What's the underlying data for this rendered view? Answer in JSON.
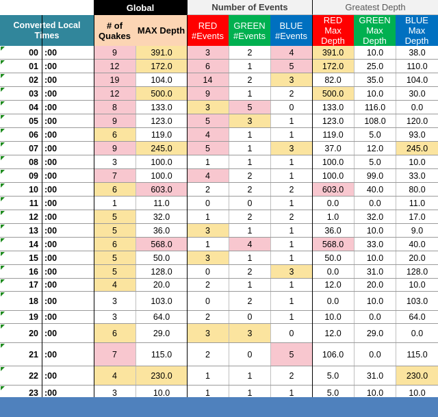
{
  "group_headers": {
    "global": "Global",
    "events": "Number of Events",
    "depth": "Greatest Depth"
  },
  "column_headers": {
    "local_times": "Converted Local Times",
    "quakes": "# of Quakes",
    "max_depth": "MAX Depth",
    "red_events": "RED #Events",
    "green_events": "GREEN #Events",
    "blue_events": "BLUE #Events",
    "red_max_depth": "RED Max Depth",
    "green_max_depth": "GREEN Max Depth",
    "blue_max_depth": "BLUE Max Depth"
  },
  "colors": {
    "local_times_header": "#31869b",
    "global_header": "#000000",
    "quakes_header": "#fcd5b4",
    "red": "#ff0000",
    "green": "#00b050",
    "blue": "#0070c0",
    "highlight_pink": "#f8c7cf",
    "highlight_yellow": "#fbe49f",
    "footer": "#4f81bd"
  },
  "rows": [
    {
      "hour": "00",
      "min": ":00",
      "quakes": "9",
      "max_depth": "391.0",
      "red": "3",
      "green": "2",
      "blue": "4",
      "red_depth": "391.0",
      "green_depth": "10.0",
      "blue_depth": "38.0"
    },
    {
      "hour": "01",
      "min": ":00",
      "quakes": "12",
      "max_depth": "172.0",
      "red": "6",
      "green": "1",
      "blue": "5",
      "red_depth": "172.0",
      "green_depth": "25.0",
      "blue_depth": "110.0"
    },
    {
      "hour": "02",
      "min": ":00",
      "quakes": "19",
      "max_depth": "104.0",
      "red": "14",
      "green": "2",
      "blue": "3",
      "red_depth": "82.0",
      "green_depth": "35.0",
      "blue_depth": "104.0"
    },
    {
      "hour": "03",
      "min": ":00",
      "quakes": "12",
      "max_depth": "500.0",
      "red": "9",
      "green": "1",
      "blue": "2",
      "red_depth": "500.0",
      "green_depth": "10.0",
      "blue_depth": "30.0"
    },
    {
      "hour": "04",
      "min": ":00",
      "quakes": "8",
      "max_depth": "133.0",
      "red": "3",
      "green": "5",
      "blue": "0",
      "red_depth": "133.0",
      "green_depth": "116.0",
      "blue_depth": "0.0"
    },
    {
      "hour": "05",
      "min": ":00",
      "quakes": "9",
      "max_depth": "123.0",
      "red": "5",
      "green": "3",
      "blue": "1",
      "red_depth": "123.0",
      "green_depth": "108.0",
      "blue_depth": "120.0"
    },
    {
      "hour": "06",
      "min": ":00",
      "quakes": "6",
      "max_depth": "119.0",
      "red": "4",
      "green": "1",
      "blue": "1",
      "red_depth": "119.0",
      "green_depth": "5.0",
      "blue_depth": "93.0"
    },
    {
      "hour": "07",
      "min": ":00",
      "quakes": "9",
      "max_depth": "245.0",
      "red": "5",
      "green": "1",
      "blue": "3",
      "red_depth": "37.0",
      "green_depth": "12.0",
      "blue_depth": "245.0"
    },
    {
      "hour": "08",
      "min": ":00",
      "quakes": "3",
      "max_depth": "100.0",
      "red": "1",
      "green": "1",
      "blue": "1",
      "red_depth": "100.0",
      "green_depth": "5.0",
      "blue_depth": "10.0"
    },
    {
      "hour": "09",
      "min": ":00",
      "quakes": "7",
      "max_depth": "100.0",
      "red": "4",
      "green": "2",
      "blue": "1",
      "red_depth": "100.0",
      "green_depth": "99.0",
      "blue_depth": "33.0"
    },
    {
      "hour": "10",
      "min": ":00",
      "quakes": "6",
      "max_depth": "603.0",
      "red": "2",
      "green": "2",
      "blue": "2",
      "red_depth": "603.0",
      "green_depth": "40.0",
      "blue_depth": "80.0"
    },
    {
      "hour": "11",
      "min": ":00",
      "quakes": "1",
      "max_depth": "11.0",
      "red": "0",
      "green": "0",
      "blue": "1",
      "red_depth": "0.0",
      "green_depth": "0.0",
      "blue_depth": "11.0"
    },
    {
      "hour": "12",
      "min": ":00",
      "quakes": "5",
      "max_depth": "32.0",
      "red": "1",
      "green": "2",
      "blue": "2",
      "red_depth": "1.0",
      "green_depth": "32.0",
      "blue_depth": "17.0"
    },
    {
      "hour": "13",
      "min": ":00",
      "quakes": "5",
      "max_depth": "36.0",
      "red": "3",
      "green": "1",
      "blue": "1",
      "red_depth": "36.0",
      "green_depth": "10.0",
      "blue_depth": "9.0"
    },
    {
      "hour": "14",
      "min": ":00",
      "quakes": "6",
      "max_depth": "568.0",
      "red": "1",
      "green": "4",
      "blue": "1",
      "red_depth": "568.0",
      "green_depth": "33.0",
      "blue_depth": "40.0"
    },
    {
      "hour": "15",
      "min": ":00",
      "quakes": "5",
      "max_depth": "50.0",
      "red": "3",
      "green": "1",
      "blue": "1",
      "red_depth": "50.0",
      "green_depth": "10.0",
      "blue_depth": "20.0"
    },
    {
      "hour": "16",
      "min": ":00",
      "quakes": "5",
      "max_depth": "128.0",
      "red": "0",
      "green": "2",
      "blue": "3",
      "red_depth": "0.0",
      "green_depth": "31.0",
      "blue_depth": "128.0"
    },
    {
      "hour": "17",
      "min": ":00",
      "quakes": "4",
      "max_depth": "20.0",
      "red": "2",
      "green": "1",
      "blue": "1",
      "red_depth": "12.0",
      "green_depth": "20.0",
      "blue_depth": "10.0"
    },
    {
      "hour": "18",
      "min": ":00",
      "quakes": "3",
      "max_depth": "103.0",
      "red": "0",
      "green": "2",
      "blue": "1",
      "red_depth": "0.0",
      "green_depth": "10.0",
      "blue_depth": "103.0"
    },
    {
      "hour": "19",
      "min": ":00",
      "quakes": "3",
      "max_depth": "64.0",
      "red": "2",
      "green": "0",
      "blue": "1",
      "red_depth": "10.0",
      "green_depth": "0.0",
      "blue_depth": "64.0"
    },
    {
      "hour": "20",
      "min": ":00",
      "quakes": "6",
      "max_depth": "29.0",
      "red": "3",
      "green": "3",
      "blue": "0",
      "red_depth": "12.0",
      "green_depth": "29.0",
      "blue_depth": "0.0"
    },
    {
      "hour": "21",
      "min": ":00",
      "quakes": "7",
      "max_depth": "115.0",
      "red": "2",
      "green": "0",
      "blue": "5",
      "red_depth": "106.0",
      "green_depth": "0.0",
      "blue_depth": "115.0"
    },
    {
      "hour": "22",
      "min": ":00",
      "quakes": "4",
      "max_depth": "230.0",
      "red": "1",
      "green": "1",
      "blue": "2",
      "red_depth": "5.0",
      "green_depth": "31.0",
      "blue_depth": "230.0"
    },
    {
      "hour": "23",
      "min": ":00",
      "quakes": "3",
      "max_depth": "10.0",
      "red": "1",
      "green": "1",
      "blue": "1",
      "red_depth": "5.0",
      "green_depth": "10.0",
      "blue_depth": "10.0"
    }
  ],
  "highlights": [
    {
      "quakes": "pink",
      "max_depth": "yel",
      "red": "pink",
      "blue": "pink",
      "red_depth": "yel"
    },
    {
      "quakes": "pink",
      "max_depth": "yel",
      "red": "pink",
      "blue": "pink",
      "red_depth": "yel"
    },
    {
      "quakes": "pink",
      "red": "pink",
      "blue": "yel"
    },
    {
      "quakes": "pink",
      "max_depth": "yel",
      "red": "pink",
      "red_depth": "yel"
    },
    {
      "quakes": "pink",
      "red": "yel",
      "green": "pink"
    },
    {
      "quakes": "pink",
      "red": "pink",
      "green": "yel"
    },
    {
      "quakes": "yel",
      "red": "pink"
    },
    {
      "quakes": "pink",
      "max_depth": "yel",
      "red": "pink",
      "blue": "yel",
      "blue_depth": "yel"
    },
    {},
    {
      "quakes": "pink",
      "red": "pink"
    },
    {
      "quakes": "yel",
      "max_depth": "pink",
      "red_depth": "pink"
    },
    {},
    {
      "quakes": "yel"
    },
    {
      "quakes": "yel",
      "red": "yel"
    },
    {
      "quakes": "yel",
      "max_depth": "pink",
      "green": "pink",
      "red_depth": "pink"
    },
    {
      "quakes": "yel",
      "red": "yel"
    },
    {
      "quakes": "yel",
      "blue": "yel"
    },
    {
      "quakes": "yel"
    },
    {},
    {},
    {
      "quakes": "yel",
      "red": "yel",
      "green": "yel"
    },
    {
      "quakes": "pink",
      "blue": "pink"
    },
    {
      "quakes": "yel",
      "max_depth": "yel",
      "blue_depth": "yel"
    },
    {}
  ]
}
